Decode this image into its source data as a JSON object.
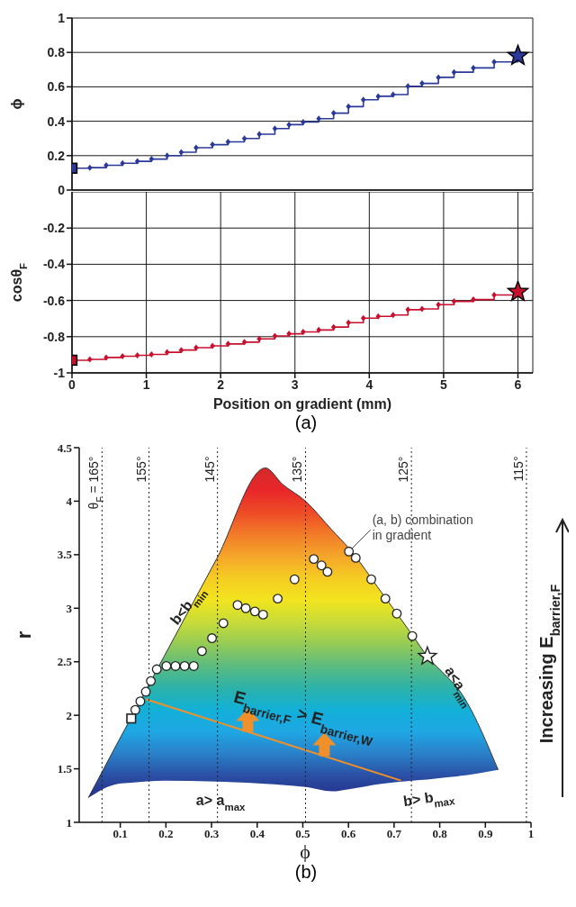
{
  "chart_data": [
    {
      "type": "step",
      "xlim": [
        0,
        6.2
      ],
      "xticks": [
        0,
        1,
        2,
        3,
        4,
        5,
        6
      ],
      "ylim": [
        0,
        1
      ],
      "yticks": [
        0,
        0.2,
        0.4,
        0.6,
        0.8,
        1
      ],
      "ylabel": "ϕ",
      "grid": true,
      "tick_labels": "y",
      "marker": "diamond",
      "series": [
        {
          "color": "#2b3a9a",
          "x": [
            0,
            0.24,
            0.46,
            0.68,
            0.88,
            1.07,
            1.28,
            1.47,
            1.67,
            1.89,
            2.1,
            2.32,
            2.52,
            2.73,
            2.92,
            3.11,
            3.32,
            3.52,
            3.72,
            3.92,
            4.12,
            4.32,
            4.52,
            4.71,
            4.93,
            5.14,
            5.4,
            5.68,
            6.0
          ],
          "values": [
            0.127,
            0.13,
            0.144,
            0.156,
            0.167,
            0.18,
            0.2,
            0.22,
            0.246,
            0.264,
            0.28,
            0.3,
            0.325,
            0.357,
            0.38,
            0.395,
            0.415,
            0.447,
            0.485,
            0.525,
            0.545,
            0.555,
            0.603,
            0.62,
            0.655,
            0.685,
            0.71,
            0.745,
            0.78
          ]
        },
        {
          "type": "scatter",
          "marker": "square",
          "color": "#2b3a9a",
          "x": [
            0
          ],
          "values": [
            0.127
          ]
        },
        {
          "type": "scatter",
          "marker": "star",
          "color": "#2b3a9a",
          "x": [
            6.0
          ],
          "values": [
            0.78
          ]
        }
      ]
    },
    {
      "type": "step",
      "xlim": [
        0,
        6.2
      ],
      "xticks": [
        0,
        1,
        2,
        3,
        4,
        5,
        6
      ],
      "ylim": [
        -1,
        0
      ],
      "yticks": [
        -1,
        -0.8,
        -0.6,
        -0.4,
        -0.2
      ],
      "ylabel": "cosθ$_{F}$",
      "xlabel": "Position on gradient (mm)",
      "grid": true,
      "marker": "diamond",
      "annotations": [
        "(a)"
      ],
      "series": [
        {
          "color": "#c8102e",
          "x": [
            0,
            0.24,
            0.46,
            0.68,
            0.88,
            1.07,
            1.28,
            1.47,
            1.67,
            1.89,
            2.1,
            2.32,
            2.52,
            2.73,
            2.92,
            3.11,
            3.32,
            3.52,
            3.72,
            3.92,
            4.12,
            4.32,
            4.52,
            4.71,
            4.93,
            5.14,
            5.4,
            5.68,
            6.0
          ],
          "values": [
            -0.93,
            -0.925,
            -0.915,
            -0.908,
            -0.903,
            -0.898,
            -0.886,
            -0.874,
            -0.861,
            -0.851,
            -0.84,
            -0.83,
            -0.812,
            -0.796,
            -0.784,
            -0.774,
            -0.763,
            -0.747,
            -0.723,
            -0.698,
            -0.688,
            -0.68,
            -0.651,
            -0.647,
            -0.623,
            -0.605,
            -0.595,
            -0.57,
            -0.552
          ]
        },
        {
          "type": "scatter",
          "marker": "square",
          "color": "#c8102e",
          "x": [
            0
          ],
          "values": [
            -0.93
          ]
        },
        {
          "type": "scatter",
          "marker": "star",
          "color": "#c8102e",
          "x": [
            6.0
          ],
          "values": [
            -0.552
          ]
        }
      ]
    },
    {
      "type": "scatter",
      "xlim": [
        0.01,
        1
      ],
      "xticks": [
        0.1,
        0.2,
        0.3,
        0.4,
        0.5,
        0.6,
        0.7,
        0.8,
        0.9,
        1
      ],
      "ylim": [
        1,
        4.5
      ],
      "yticks": [
        1,
        1.5,
        2,
        2.5,
        3,
        3.5,
        4,
        4.5
      ],
      "xlabel": "ϕ",
      "ylabel": "r",
      "grid": false,
      "series": [
        {
          "type": "line",
          "color": "#333333",
          "upper": [
            1.23,
            1.75,
            1.98,
            2.55,
            3.46,
            4.31,
            4.16,
            4.0,
            3.73,
            3.56,
            3.15,
            2.75,
            2.55,
            2.36,
            2.26,
            1.49
          ],
          "colors": [
            "#d42a2a",
            "#e8262a",
            "#ee4a26",
            "#f27a28",
            "#f5a52a",
            "#f5cc22",
            "#f2e41e",
            "#c8dc38",
            "#95cb55",
            "#5cbb80",
            "#2cb2a8",
            "#12b0d8",
            "#1fa7e4",
            "#2a80c8",
            "#2a4fa4",
            "#252f8a"
          ],
          "x": [
            0.03,
            0.095,
            0.124,
            0.196,
            0.311,
            0.418,
            0.455,
            0.506,
            0.564,
            0.601,
            0.672,
            0.74,
            0.773,
            0.816,
            0.838,
            0.928
          ],
          "values": [
            1.23,
            1.75,
            1.98,
            2.55,
            3.46,
            4.31,
            4.16,
            4.0,
            3.73,
            3.56,
            3.15,
            2.75,
            2.55,
            2.36,
            2.26,
            1.49
          ],
          "lower": [
            1.23,
            1.36,
            1.37,
            1.39,
            1.38,
            1.36,
            1.35,
            1.33,
            1.29,
            1.31,
            1.36,
            1.39,
            1.4,
            1.42,
            1.43,
            1.49
          ]
        },
        {
          "type": "line",
          "color": "#f0902a",
          "x": [
            0.156,
            0.715
          ],
          "values": [
            2.15,
            1.39
          ]
        },
        {
          "type": "scatter",
          "marker": "circle",
          "color": "#ffffff",
          "x": [
            0.133,
            0.144,
            0.156,
            0.167,
            0.18,
            0.201,
            0.221,
            0.241,
            0.261,
            0.279,
            0.301,
            0.326,
            0.357,
            0.375,
            0.395,
            0.413,
            0.445,
            0.482,
            0.524,
            0.541,
            0.554,
            0.601,
            0.616,
            0.65,
            0.681,
            0.706,
            0.74
          ],
          "values": [
            2.05,
            2.13,
            2.22,
            2.32,
            2.43,
            2.46,
            2.46,
            2.46,
            2.46,
            2.6,
            2.72,
            2.86,
            3.03,
            3.0,
            2.97,
            2.94,
            3.09,
            3.27,
            3.46,
            3.4,
            3.34,
            3.53,
            3.47,
            3.27,
            3.09,
            2.95,
            2.74
          ]
        },
        {
          "type": "scatter",
          "marker": "square",
          "color": "#ffffff",
          "x": [
            0.124
          ],
          "values": [
            1.97
          ]
        },
        {
          "type": "scatter",
          "marker": "star",
          "color": "#ffffff",
          "x": [
            0.773
          ],
          "values": [
            2.55
          ]
        }
      ],
      "ref_lines": [
        {
          "axis": "x",
          "value": 0.06,
          "line_style": "dotted"
        },
        {
          "axis": "x",
          "value": 0.163,
          "line_style": "dotted"
        },
        {
          "axis": "x",
          "value": 0.313,
          "line_style": "dotted"
        },
        {
          "axis": "x",
          "value": 0.506,
          "line_style": "dotted"
        },
        {
          "axis": "x",
          "value": 0.738,
          "line_style": "dotted"
        },
        {
          "axis": "x",
          "value": 0.99,
          "line_style": "dotted"
        }
      ],
      "annotations": [
        "Increasing E$_{barrier,F}$",
        "(b)",
        {
          "text": "(a, b) combination in gradient",
          "x": 0.601,
          "y": 3.53
        },
        {
          "text": "b<b$_{min}$",
          "x": 0.255,
          "y": 3.0
        },
        {
          "text": "a<a$_{min}$",
          "x": 0.835,
          "y": 2.25
        },
        {
          "text": "a> a$_{max}$",
          "x": 0.32,
          "y": 1.38
        },
        {
          "text": "b> b$_{max}$",
          "x": 0.77,
          "y": 1.4
        },
        {
          "text": "E$_{barrier,F}$ > E$_{barrier,W}$",
          "x": 0.5,
          "y": 1.95
        },
        {
          "text": "θ$_{F}$ = 165°",
          "x": 0.06,
          "y": 4.42
        },
        {
          "text": "155°",
          "x": 0.163,
          "y": 4.42
        },
        {
          "text": "145°",
          "x": 0.313,
          "y": 4.42
        },
        {
          "text": "135°",
          "x": 0.506,
          "y": 4.42
        },
        {
          "text": "125°",
          "x": 0.738,
          "y": 4.42
        },
        {
          "text": "115°",
          "x": 0.99,
          "y": 4.42
        }
      ]
    }
  ]
}
